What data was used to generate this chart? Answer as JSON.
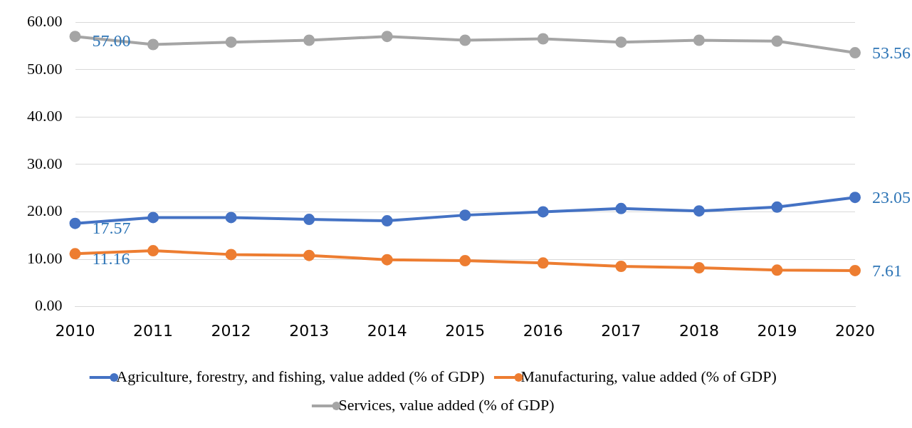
{
  "chart_data": {
    "type": "line",
    "categories": [
      "2010",
      "2011",
      "2012",
      "2013",
      "2014",
      "2015",
      "2016",
      "2017",
      "2018",
      "2019",
      "2020"
    ],
    "series": [
      {
        "name": "Agriculture, forestry, and fishing, value added (% of GDP)",
        "color": "#4472c4",
        "values": [
          17.57,
          18.8,
          18.8,
          18.4,
          18.1,
          19.3,
          20.0,
          20.7,
          20.2,
          21.0,
          23.05
        ],
        "value_labels": [
          "17.57",
          null,
          null,
          null,
          null,
          null,
          null,
          null,
          null,
          null,
          "23.05"
        ]
      },
      {
        "name": "Manufacturing, value added (% of GDP)",
        "color": "#ed7d31",
        "values": [
          11.16,
          11.8,
          11.0,
          10.8,
          9.9,
          9.7,
          9.2,
          8.5,
          8.2,
          7.7,
          7.61
        ],
        "value_labels": [
          "11.16",
          null,
          null,
          null,
          null,
          null,
          null,
          null,
          null,
          null,
          "7.61"
        ]
      },
      {
        "name": "Services, value added (% of GDP)",
        "color": "#a5a5a5",
        "values": [
          57.0,
          55.3,
          55.8,
          56.2,
          57.0,
          56.2,
          56.5,
          55.8,
          56.2,
          56.0,
          53.56
        ],
        "value_labels": [
          "57.00",
          null,
          null,
          null,
          null,
          null,
          null,
          null,
          null,
          null,
          "53.56"
        ]
      }
    ],
    "ylim": [
      0,
      60
    ],
    "yticks": [
      {
        "value": 0,
        "label": "0.00"
      },
      {
        "value": 10,
        "label": "10.00"
      },
      {
        "value": 20,
        "label": "20.00"
      },
      {
        "value": 30,
        "label": "30.00"
      },
      {
        "value": 40,
        "label": "40.00"
      },
      {
        "value": 50,
        "label": "50.00"
      },
      {
        "value": 60,
        "label": "60.00"
      }
    ],
    "grid": "y",
    "legend": "bottom",
    "marker": "circle",
    "line_style": "solid"
  }
}
